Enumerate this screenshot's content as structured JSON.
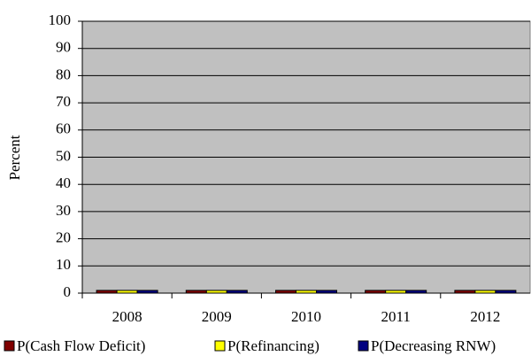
{
  "chart_data": {
    "type": "bar",
    "y_label": "Percent",
    "categories": [
      "2008",
      "2009",
      "2010",
      "2011",
      "2012"
    ],
    "series": [
      {
        "name": "P(Cash Flow Deficit)",
        "color": "#800000",
        "values": [
          1,
          1,
          1,
          1,
          1
        ]
      },
      {
        "name": "P(Refinancing)",
        "color": "#ffff00",
        "values": [
          1,
          1,
          1,
          1,
          1
        ]
      },
      {
        "name": "P(Decreasing RNW)",
        "color": "#000080",
        "values": [
          1,
          1,
          1,
          1,
          1
        ]
      }
    ],
    "ylim": [
      0,
      100
    ],
    "yticks": [
      0,
      10,
      20,
      30,
      40,
      50,
      60,
      70,
      80,
      90,
      100
    ],
    "grid": true,
    "plot_background": "#c0c0c0",
    "legend": "bottom"
  }
}
